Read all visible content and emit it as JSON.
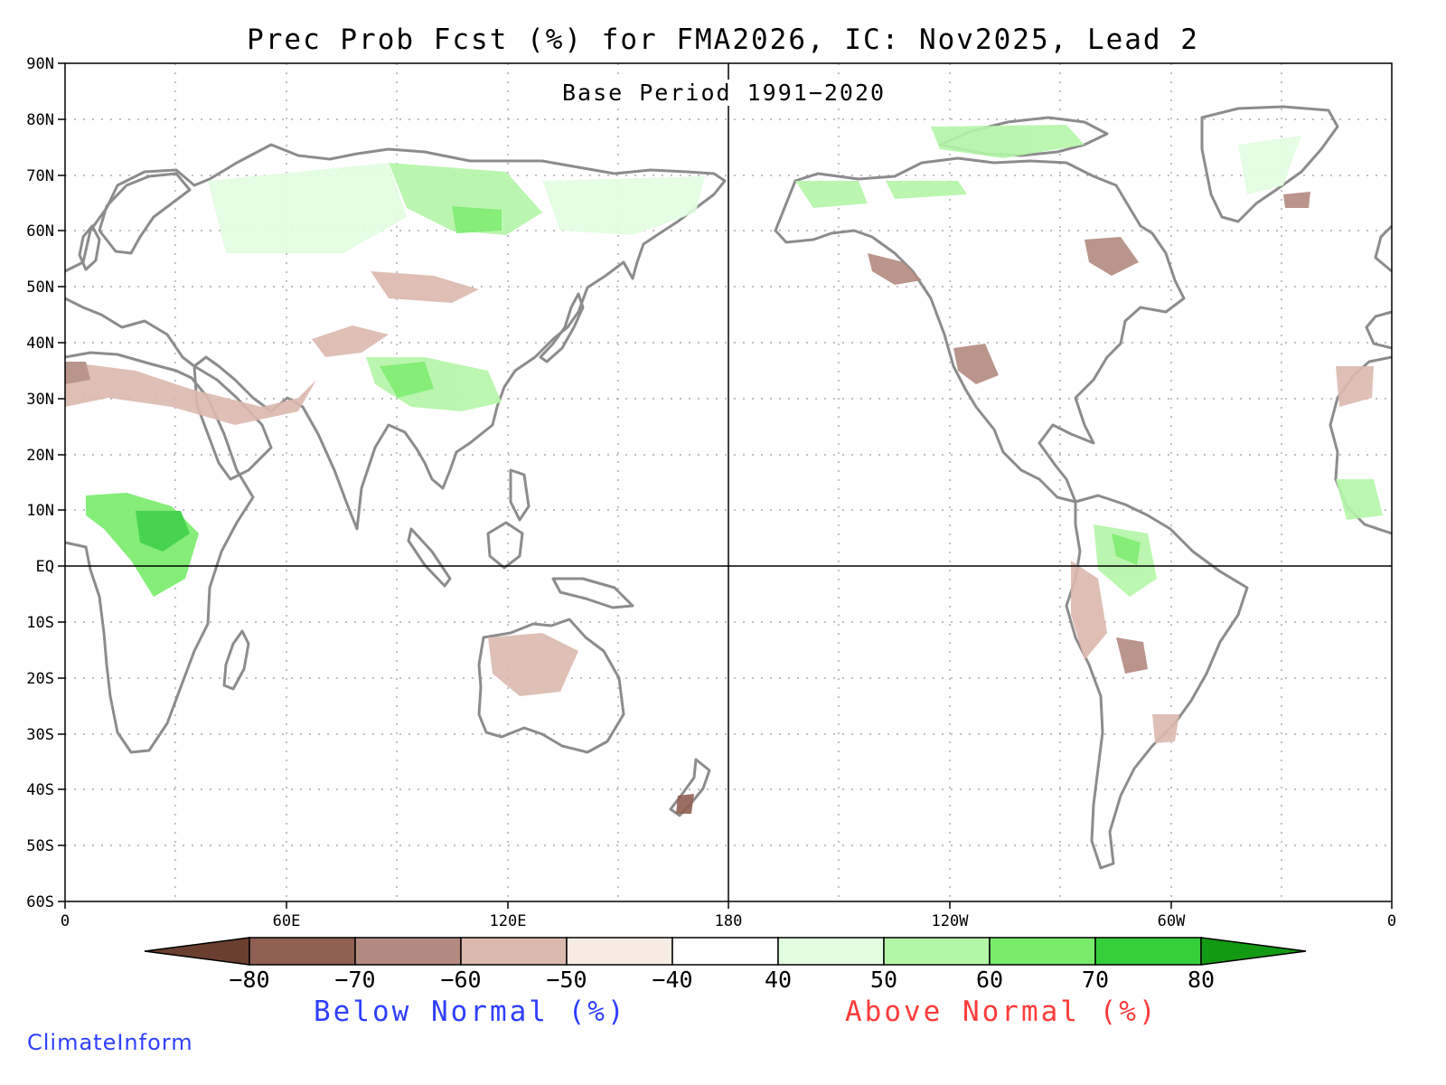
{
  "title": "Prec Prob Fcst (%) for FMA2026, IC: Nov2025, Lead 2",
  "subtitle": "Base Period 1991−2020",
  "lat_ticks": [
    "90N",
    "80N",
    "70N",
    "60N",
    "50N",
    "40N",
    "30N",
    "20N",
    "10N",
    "EQ",
    "10S",
    "20S",
    "30S",
    "40S",
    "50S",
    "60S"
  ],
  "lon_ticks": [
    "0",
    "60E",
    "120E",
    "180",
    "120W",
    "60W",
    "0"
  ],
  "colorbar": {
    "tick_labels": [
      "−80",
      "−70",
      "−60",
      "−50",
      "−40",
      "40",
      "50",
      "60",
      "70",
      "80"
    ],
    "colors": [
      "#6b3f30",
      "#8f5f52",
      "#b38a80",
      "#dcb9ae",
      "#f7ece4",
      "#ffffff",
      "#e2fde0",
      "#b4f6a8",
      "#78ec6a",
      "#35cf3c",
      "#139a13"
    ],
    "below_label": "Below Normal (%)",
    "above_label": "Above Normal (%)"
  },
  "credit": "ClimateInform",
  "colors": {
    "land_outline": "#8c8c8c",
    "below_text": "#2f3fff",
    "above_text": "#ff3b3b",
    "grid": "#9a9a9a"
  }
}
